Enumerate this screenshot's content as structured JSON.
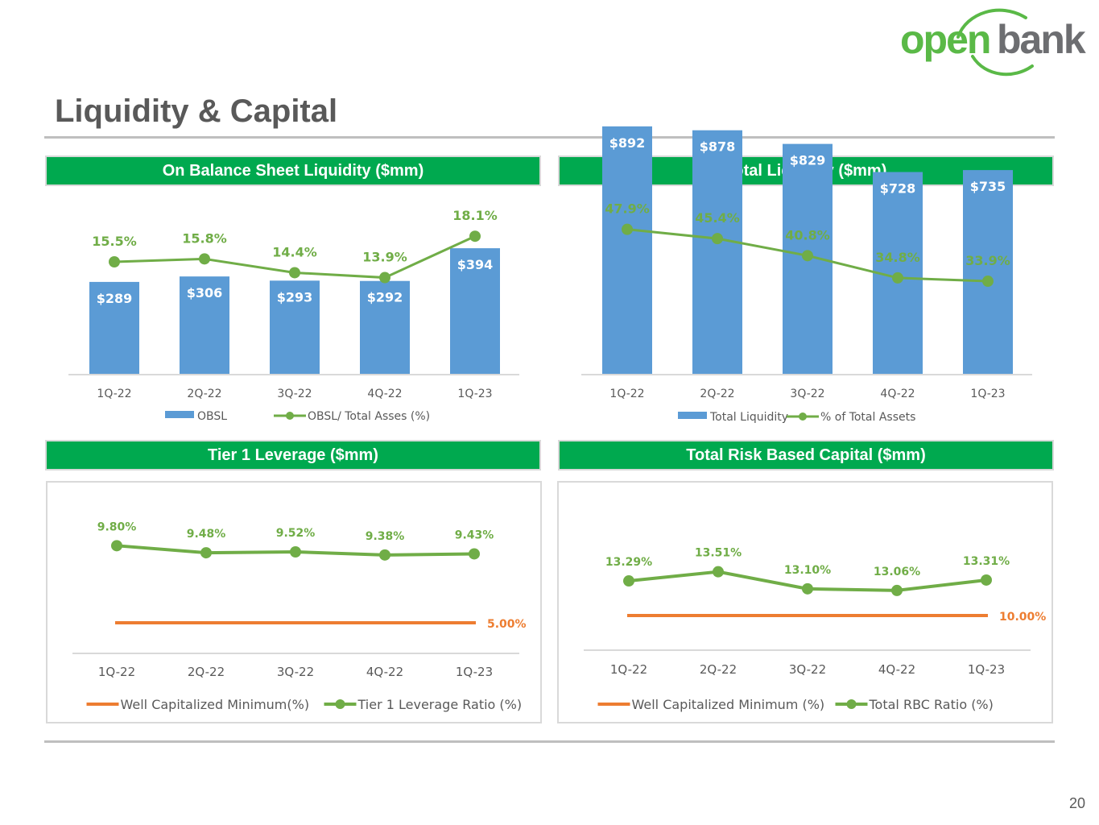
{
  "brand": {
    "logo_word_1": "open",
    "logo_word_2": "bank",
    "primary_green": "#00a94f",
    "logo_green": "#5ab947",
    "logo_gray": "#6d6e71"
  },
  "page": {
    "title": "Liquidity & Capital",
    "page_number": "20"
  },
  "colors": {
    "bar_blue": "#5b9bd5",
    "line_green": "#70ad47",
    "min_orange": "#ed7d31",
    "axis_text": "#595959",
    "panel_border": "#d9d9d9"
  },
  "panels": {
    "obsl": {
      "title": "On Balance Sheet Liquidity ($mm)"
    },
    "total_liquidity": {
      "title": "Total Liquidity ($mm)"
    },
    "tier1": {
      "title": "Tier 1 Leverage ($mm)"
    },
    "rbc": {
      "title": "Total Risk Based Capital ($mm)"
    }
  },
  "chart_data": [
    {
      "id": "obsl",
      "type": "bar",
      "title": "On Balance Sheet Liquidity ($mm)",
      "categories": [
        "1Q-22",
        "2Q-22",
        "3Q-22",
        "4Q-22",
        "1Q-23"
      ],
      "series": [
        {
          "name": "OBSL",
          "kind": "bar",
          "values": [
            289,
            306,
            293,
            292,
            394
          ],
          "labels": [
            "$289",
            "$306",
            "$293",
            "$292",
            "$394"
          ]
        },
        {
          "name": "OBSL/ Total Asses (%)",
          "kind": "line",
          "values": [
            15.5,
            15.8,
            14.4,
            13.9,
            18.1
          ],
          "labels": [
            "15.5%",
            "15.8%",
            "14.4%",
            "13.9%",
            "18.1%"
          ]
        }
      ],
      "legend": "bottom"
    },
    {
      "id": "total_liquidity",
      "type": "bar",
      "title": "Total Liquidity ($mm)",
      "categories": [
        "1Q-22",
        "2Q-22",
        "3Q-22",
        "4Q-22",
        "1Q-23"
      ],
      "series": [
        {
          "name": "Total Liquidity",
          "kind": "bar",
          "values": [
            892,
            878,
            829,
            728,
            735
          ],
          "labels": [
            "$892",
            "$878",
            "$829",
            "$728",
            "$735"
          ]
        },
        {
          "name": "% of Total Assets",
          "kind": "line",
          "values": [
            47.9,
            45.4,
            40.8,
            34.8,
            33.9
          ],
          "labels": [
            "47.9%",
            "45.4%",
            "40.8%",
            "34.8%",
            "33.9%"
          ]
        }
      ],
      "legend": "bottom"
    },
    {
      "id": "tier1",
      "type": "line",
      "title": "Tier 1 Leverage ($mm)",
      "categories": [
        "1Q-22",
        "2Q-22",
        "3Q-22",
        "4Q-22",
        "1Q-23"
      ],
      "series": [
        {
          "name": "Well Capitalized Minimum(%)",
          "kind": "min",
          "values": [
            5.0,
            5.0,
            5.0,
            5.0,
            5.0
          ],
          "end_label": "5.00%"
        },
        {
          "name": "Tier 1 Leverage Ratio (%)",
          "kind": "line",
          "values": [
            9.8,
            9.48,
            9.52,
            9.38,
            9.43
          ],
          "labels": [
            "9.80%",
            "9.48%",
            "9.52%",
            "9.38%",
            "9.43%"
          ]
        }
      ],
      "legend": "bottom"
    },
    {
      "id": "rbc",
      "type": "line",
      "title": "Total Risk Based Capital ($mm)",
      "categories": [
        "1Q-22",
        "2Q-22",
        "3Q-22",
        "4Q-22",
        "1Q-23"
      ],
      "series": [
        {
          "name": "Well Capitalized Minimum (%)",
          "kind": "min",
          "values": [
            10.0,
            10.0,
            10.0,
            10.0,
            10.0
          ],
          "end_label": "10.00%"
        },
        {
          "name": "Total RBC Ratio (%)",
          "kind": "line",
          "values": [
            13.29,
            13.51,
            13.1,
            13.06,
            13.31
          ],
          "labels": [
            "13.29%",
            "13.51%",
            "13.10%",
            "13.06%",
            "13.31%"
          ]
        }
      ],
      "legend": "bottom"
    }
  ]
}
